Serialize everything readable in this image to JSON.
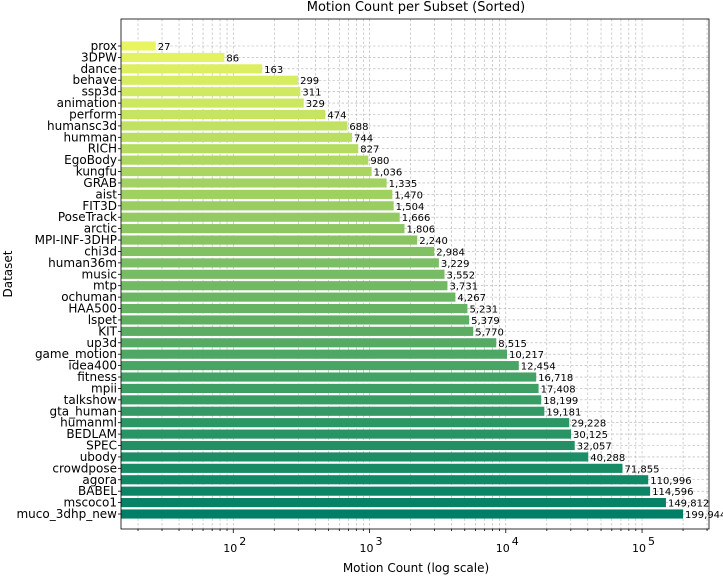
{
  "chart_data": {
    "type": "bar",
    "orientation": "horizontal",
    "title": "Motion Count per Subset (Sorted)",
    "xlabel": "Motion Count (log scale)",
    "ylabel": "Dataset",
    "xscale": "log",
    "xlim": [
      15,
      310000
    ],
    "xticks": [
      {
        "value": 100,
        "label": "10",
        "exp": "2"
      },
      {
        "value": 1000,
        "label": "10",
        "exp": "3"
      },
      {
        "value": 10000,
        "label": "10",
        "exp": "4"
      },
      {
        "value": 100000,
        "label": "10",
        "exp": "5"
      }
    ],
    "grid": true,
    "colormap": "summer (yellow to green, ascending with rank)",
    "color_start": "#e8f560",
    "color_end": "#007f66",
    "categories": [
      "prox",
      "3DPW",
      "dance",
      "behave",
      "ssp3d",
      "animation",
      "perform",
      "humansc3d",
      "humman",
      "RICH",
      "EgoBody",
      "kungfu",
      "GRAB",
      "aist",
      "FIT3D",
      "PoseTrack",
      "arctic",
      "MPI-INF-3DHP",
      "chi3d",
      "human36m",
      "music",
      "mtp",
      "ochuman",
      "HAA500",
      "lspet",
      "KIT",
      "up3d",
      "game_motion",
      "idea400",
      "fitness",
      "mpii",
      "talkshow",
      "gta_human",
      "humanml",
      "BEDLAM",
      "SPEC",
      "ubody",
      "crowdpose",
      "agora",
      "BABEL",
      "mscoco1",
      "muco_3dhp_new"
    ],
    "values": [
      27,
      86,
      163,
      299,
      311,
      329,
      474,
      688,
      744,
      827,
      980,
      1036,
      1335,
      1470,
      1504,
      1666,
      1806,
      2240,
      2984,
      3229,
      3552,
      3731,
      4267,
      5231,
      5379,
      5770,
      8515,
      10217,
      12454,
      16718,
      17408,
      18199,
      19181,
      29228,
      30125,
      32057,
      40288,
      71855,
      110996,
      114596,
      149812,
      199944
    ],
    "value_labels": [
      "27",
      "86",
      "163",
      "299",
      "311",
      "329",
      "474",
      "688",
      "744",
      "827",
      "980",
      "1,036",
      "1,335",
      "1,470",
      "1,504",
      "1,666",
      "1,806",
      "2,240",
      "2,984",
      "3,229",
      "3,552",
      "3,731",
      "4,267",
      "5,231",
      "5,379",
      "5,770",
      "8,515",
      "10,217",
      "12,454",
      "16,718",
      "17,408",
      "18,199",
      "19,181",
      "29,228",
      "30,125",
      "32,057",
      "40,288",
      "71,855",
      "110,996",
      "114,596",
      "149,812",
      "199,944"
    ]
  }
}
